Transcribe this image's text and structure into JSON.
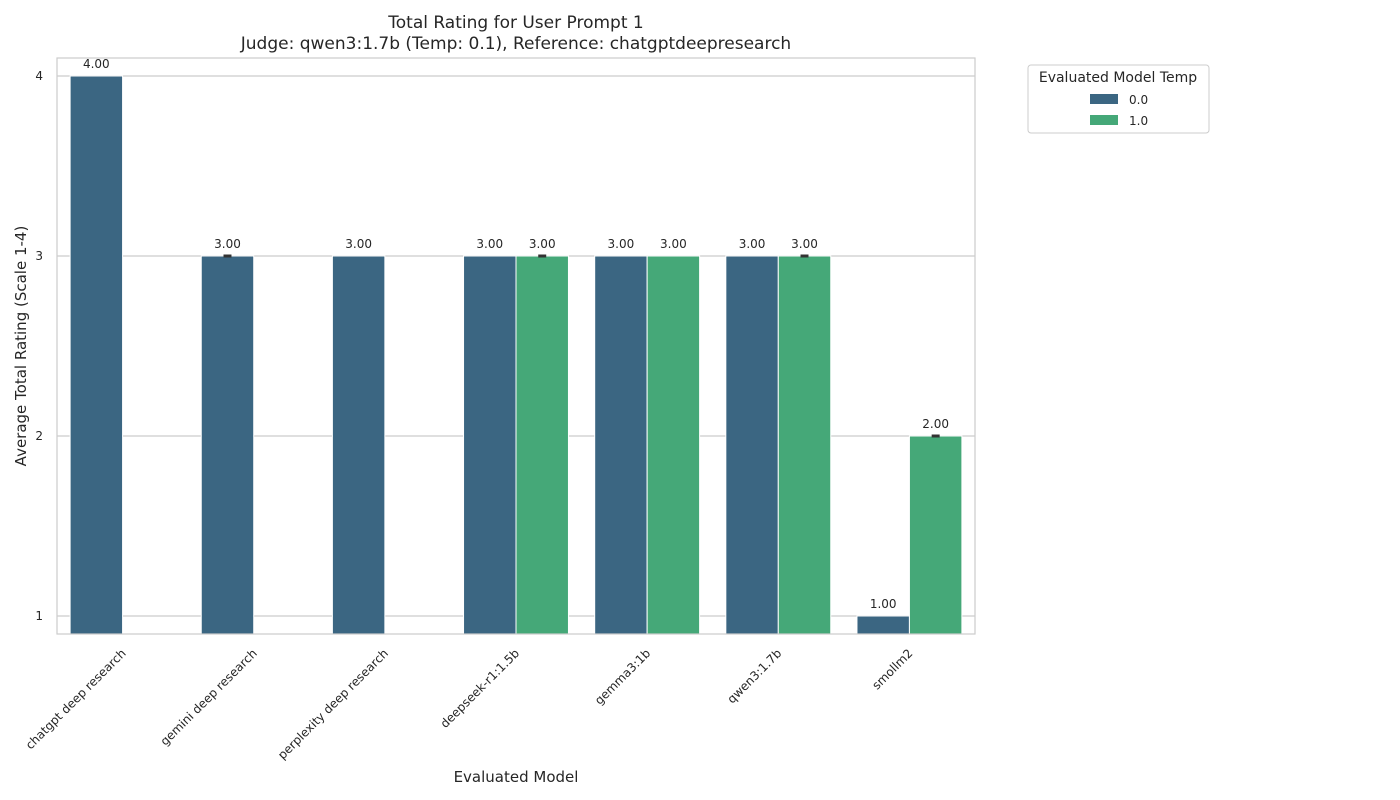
{
  "chart_data": {
    "type": "bar",
    "title": "Total Rating for User Prompt 1",
    "subtitle": "Judge: qwen3:1.7b (Temp: 0.1), Reference: chatgptdeepresearch",
    "xlabel": "Evaluated Model",
    "ylabel": "Average Total Rating (Scale 1-4)",
    "ylim": [
      0.9,
      4.1
    ],
    "yticks": [
      "1",
      "2",
      "3",
      "4"
    ],
    "grid": "horizontal",
    "legend": {
      "title": "Evaluated Model Temp",
      "placement": "outside-top-right"
    },
    "categories": [
      "chatgpt deep research",
      "gemini deep research",
      "perplexity deep research",
      "deepseek-r1:1.5b",
      "gemma3:1b",
      "qwen3:1.7b",
      "smollm2"
    ],
    "series": [
      {
        "name": "0.0",
        "color": "#3b6682",
        "values": [
          4.0,
          3.0,
          3.0,
          3.0,
          3.0,
          3.0,
          1.0
        ],
        "labels": [
          "4.00",
          "3.00",
          "3.00",
          "3.00",
          "3.00",
          "3.00",
          "1.00"
        ],
        "error_caps": [
          false,
          true,
          false,
          false,
          false,
          false,
          false
        ]
      },
      {
        "name": "1.0",
        "color": "#45a878",
        "values": [
          null,
          null,
          null,
          3.0,
          3.0,
          3.0,
          2.0
        ],
        "labels": [
          null,
          null,
          null,
          "3.00",
          "3.00",
          "3.00",
          "2.00"
        ],
        "error_caps": [
          false,
          false,
          false,
          true,
          false,
          true,
          true
        ]
      }
    ]
  }
}
